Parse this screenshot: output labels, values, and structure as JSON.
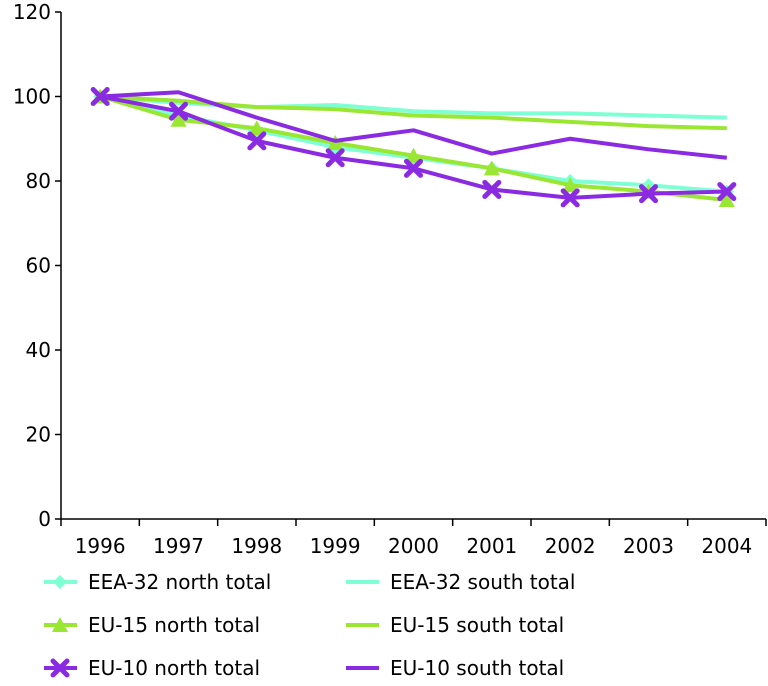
{
  "chart_data": {
    "type": "line",
    "title": "",
    "xlabel": "",
    "ylabel": "",
    "x": [
      "1996",
      "1997",
      "1998",
      "1999",
      "2000",
      "2001",
      "2002",
      "2003",
      "2004"
    ],
    "ylim": [
      0,
      120
    ],
    "yticks": [
      0,
      20,
      40,
      60,
      80,
      100,
      120
    ],
    "grid": false,
    "legend_position": "bottom",
    "series": [
      {
        "name": "EEA-32 north total",
        "color": "#7fffd4",
        "marker": "diamond",
        "values": [
          100,
          95.5,
          92,
          88,
          85.5,
          83,
          80,
          79,
          77.5
        ]
      },
      {
        "name": "EEA-32 south total",
        "color": "#7fffd4",
        "marker": "none",
        "values": [
          100,
          98.5,
          97.5,
          98,
          96.5,
          96,
          96,
          95.5,
          95
        ]
      },
      {
        "name": "EU-15 north total",
        "color": "#99e633",
        "marker": "triangle",
        "values": [
          100,
          94.5,
          92.5,
          89,
          86,
          83,
          79,
          77.5,
          75.5
        ]
      },
      {
        "name": "EU-15 south total",
        "color": "#99e633",
        "marker": "none",
        "values": [
          100,
          99,
          97.5,
          97,
          95.5,
          95,
          94,
          93,
          92.5
        ]
      },
      {
        "name": "EU-10 north total",
        "color": "#8a2be2",
        "marker": "x",
        "values": [
          100,
          96.5,
          89.5,
          85.5,
          83,
          78,
          76,
          77,
          77.5
        ]
      },
      {
        "name": "EU-10 south total",
        "color": "#8a2be2",
        "marker": "none",
        "values": [
          100,
          101,
          95,
          89.5,
          92,
          86.5,
          90,
          87.5,
          85.5
        ]
      }
    ]
  }
}
